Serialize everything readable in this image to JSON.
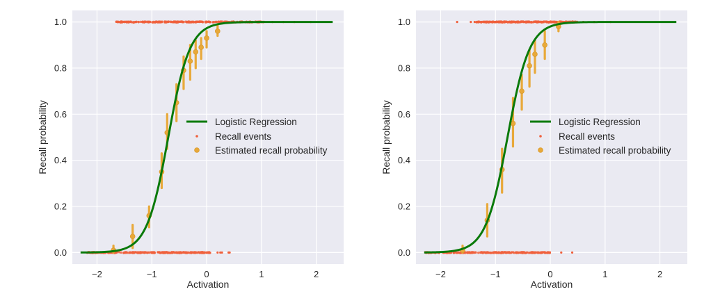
{
  "colors": {
    "plot_background": "#eaeaf2",
    "grid": "#ffffff",
    "fit_line": "#0a7a0a",
    "events": "#f0603c",
    "estimated": "#e8a93a"
  },
  "legend": {
    "fit": "Logistic Regression",
    "events": "Recall events",
    "estimated": "Estimated recall probability"
  },
  "chart_data": [
    {
      "type": "scatter",
      "panel": "left",
      "xlabel": "Activation",
      "ylabel": "Recall probability",
      "xlim": [
        -2.45,
        2.5
      ],
      "ylim": [
        -0.05,
        1.05
      ],
      "xticks": [
        -2,
        -1,
        0,
        1,
        2
      ],
      "xtick_labels": [
        "−2",
        "−1",
        "0",
        "1",
        "2"
      ],
      "yticks": [
        0.0,
        0.2,
        0.4,
        0.6,
        0.8,
        1.0
      ],
      "ytick_labels": [
        "0.0",
        "0.2",
        "0.4",
        "0.6",
        "0.8",
        "1.0"
      ],
      "grid": true,
      "legend_position": "center-right",
      "logistic_fit": {
        "midpoint": -0.7,
        "slope": 5.1,
        "x_range": [
          -2.3,
          2.3
        ]
      },
      "recall_events": {
        "recalled_x_range": [
          -1.65,
          1.05
        ],
        "recalled_sparse": [
          -1.6,
          -1.5,
          -1.45,
          -1.4,
          -1.3,
          1.2,
          1.4,
          1.6,
          1.9
        ],
        "not_recalled_x_range": [
          -2.2,
          0.1
        ],
        "not_recalled_sparse": [
          0.2,
          0.25,
          0.28,
          0.4,
          0.42
        ]
      },
      "estimated_recall_probability": {
        "x": [
          -1.7,
          -1.35,
          -1.05,
          -0.82,
          -0.72,
          -0.55,
          -0.42,
          -0.3,
          -0.2,
          -0.1,
          0.0,
          0.2
        ],
        "y": [
          0.01,
          0.07,
          0.16,
          0.35,
          0.52,
          0.65,
          0.79,
          0.83,
          0.87,
          0.89,
          0.93,
          0.96
        ],
        "err_low": [
          0.0,
          0.02,
          0.11,
          0.28,
          0.45,
          0.57,
          0.71,
          0.75,
          0.8,
          0.84,
          0.89,
          0.94
        ],
        "err_high": [
          0.03,
          0.12,
          0.2,
          0.43,
          0.6,
          0.73,
          0.85,
          0.9,
          0.92,
          0.93,
          0.96,
          0.99
        ]
      }
    },
    {
      "type": "scatter",
      "panel": "right",
      "xlabel": "Activation",
      "ylabel": "Recall probability",
      "xlim": [
        -2.45,
        2.5
      ],
      "ylim": [
        -0.05,
        1.05
      ],
      "xticks": [
        -2,
        -1,
        0,
        1,
        2
      ],
      "xtick_labels": [
        "−2",
        "−1",
        "0",
        "1",
        "2"
      ],
      "yticks": [
        0.0,
        0.2,
        0.4,
        0.6,
        0.8,
        1.0
      ],
      "ytick_labels": [
        "0.0",
        "0.2",
        "0.4",
        "0.6",
        "0.8",
        "1.0"
      ],
      "grid": true,
      "legend_position": "center-right",
      "logistic_fit": {
        "midpoint": -0.78,
        "slope": 5.0,
        "x_range": [
          -2.3,
          2.3
        ]
      },
      "recall_events": {
        "recalled_x_range": [
          -1.35,
          0.5
        ],
        "recalled_sparse": [
          -1.7,
          -1.45,
          -1.38,
          0.6,
          0.8,
          1.1
        ],
        "not_recalled_x_range": [
          -2.3,
          0.0
        ],
        "not_recalled_sparse": [
          0.2,
          0.4
        ]
      },
      "estimated_recall_probability": {
        "x": [
          -1.6,
          -1.15,
          -0.88,
          -0.68,
          -0.52,
          -0.38,
          -0.28,
          -0.1,
          0.15
        ],
        "y": [
          0.01,
          0.14,
          0.36,
          0.56,
          0.7,
          0.81,
          0.86,
          0.9,
          0.98
        ],
        "err_low": [
          0.0,
          0.07,
          0.26,
          0.46,
          0.62,
          0.72,
          0.78,
          0.84,
          0.96
        ],
        "err_high": [
          0.03,
          0.21,
          0.45,
          0.67,
          0.77,
          0.88,
          0.92,
          0.96,
          1.0
        ]
      }
    }
  ]
}
